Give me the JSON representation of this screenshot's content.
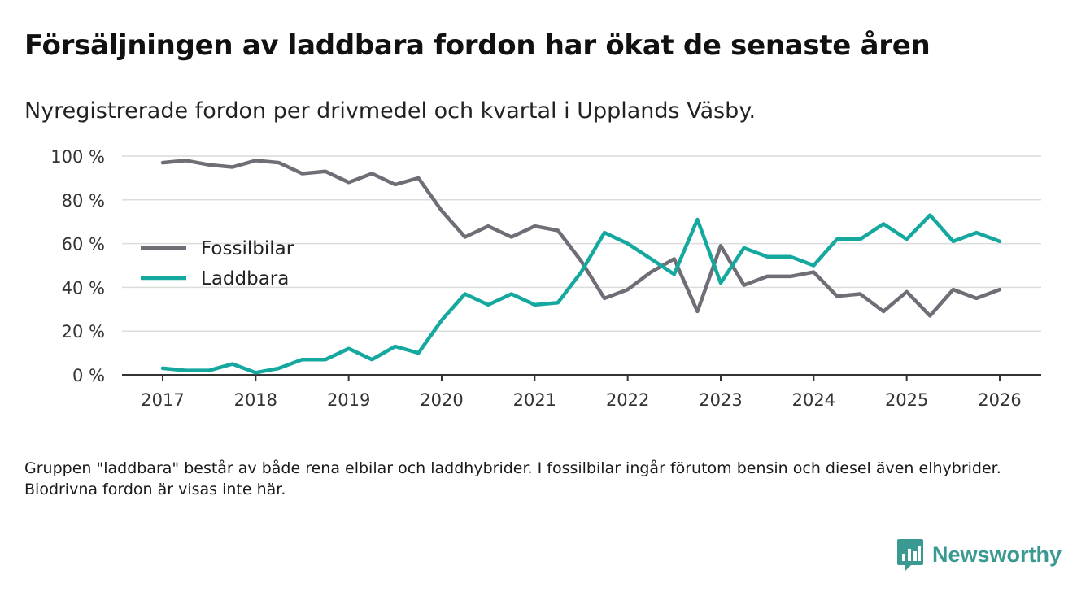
{
  "title": "Försäljningen av laddbara fordon har ökat de senaste åren",
  "subtitle": "Nyregistrerade fordon per drivmedel och kvartal i Upplands Väsby.",
  "footnote": "Gruppen \"laddbara\" består av både rena elbilar och laddhybrider. I fossilbilar ingår förutom bensin och diesel även elhybrider. Biodrivna fordon är visas inte här.",
  "brand": {
    "name": "Newsworthy",
    "icon": "newsworthy-logo-icon"
  },
  "colors": {
    "fossil": "#6f6d76",
    "laddbara": "#15a89e",
    "grid": "#dcdcdc",
    "axis": "#333333",
    "brand": "#3a9a91"
  },
  "chart_data": {
    "type": "line",
    "x_unit": "year",
    "x": [
      2017,
      2017.25,
      2017.5,
      2017.75,
      2018,
      2018.25,
      2018.5,
      2018.75,
      2019,
      2019.25,
      2019.5,
      2019.75,
      2020,
      2020.25,
      2020.5,
      2020.75,
      2021,
      2021.25,
      2021.5,
      2021.75,
      2022,
      2022.25,
      2022.5,
      2022.75,
      2023,
      2023.25,
      2023.5,
      2023.75,
      2024,
      2024.25,
      2024.5,
      2024.75,
      2025,
      2025.25,
      2025.5,
      2025.75,
      2026
    ],
    "series": [
      {
        "name": "Fossilbilar",
        "color": "#6f6d76",
        "values": [
          97,
          98,
          96,
          95,
          98,
          97,
          92,
          93,
          88,
          92,
          87,
          90,
          75,
          63,
          68,
          63,
          68,
          66,
          52,
          35,
          39,
          47,
          53,
          29,
          59,
          41,
          45,
          45,
          47,
          36,
          37,
          29,
          38,
          27,
          39,
          35,
          39
        ]
      },
      {
        "name": "Laddbara",
        "color": "#15a89e",
        "values": [
          3,
          2,
          2,
          5,
          1,
          3,
          7,
          7,
          12,
          7,
          13,
          10,
          25,
          37,
          32,
          37,
          32,
          33,
          47,
          65,
          60,
          53,
          46,
          71,
          42,
          58,
          54,
          54,
          50,
          62,
          62,
          69,
          62,
          73,
          61,
          65,
          61
        ]
      }
    ],
    "title": "Försäljningen av laddbara fordon har ökat de senaste åren",
    "subtitle": "Nyregistrerade fordon per drivmedel och kvartal i Upplands Väsby.",
    "xlabel": "",
    "ylabel": "",
    "ylim": [
      0,
      100
    ],
    "xlim": [
      2017,
      2026
    ],
    "y_ticks": [
      0,
      20,
      40,
      60,
      80,
      100
    ],
    "y_tick_labels": [
      "0 %",
      "20 %",
      "40 %",
      "60 %",
      "80 %",
      "100 %"
    ],
    "x_ticks": [
      2017,
      2018,
      2019,
      2020,
      2021,
      2022,
      2023,
      2024,
      2025,
      2026
    ],
    "x_tick_labels": [
      "2017",
      "2018",
      "2019",
      "2020",
      "2021",
      "2022",
      "2023",
      "2024",
      "2025",
      "2026"
    ],
    "grid": true,
    "legend_position": "left-middle"
  }
}
